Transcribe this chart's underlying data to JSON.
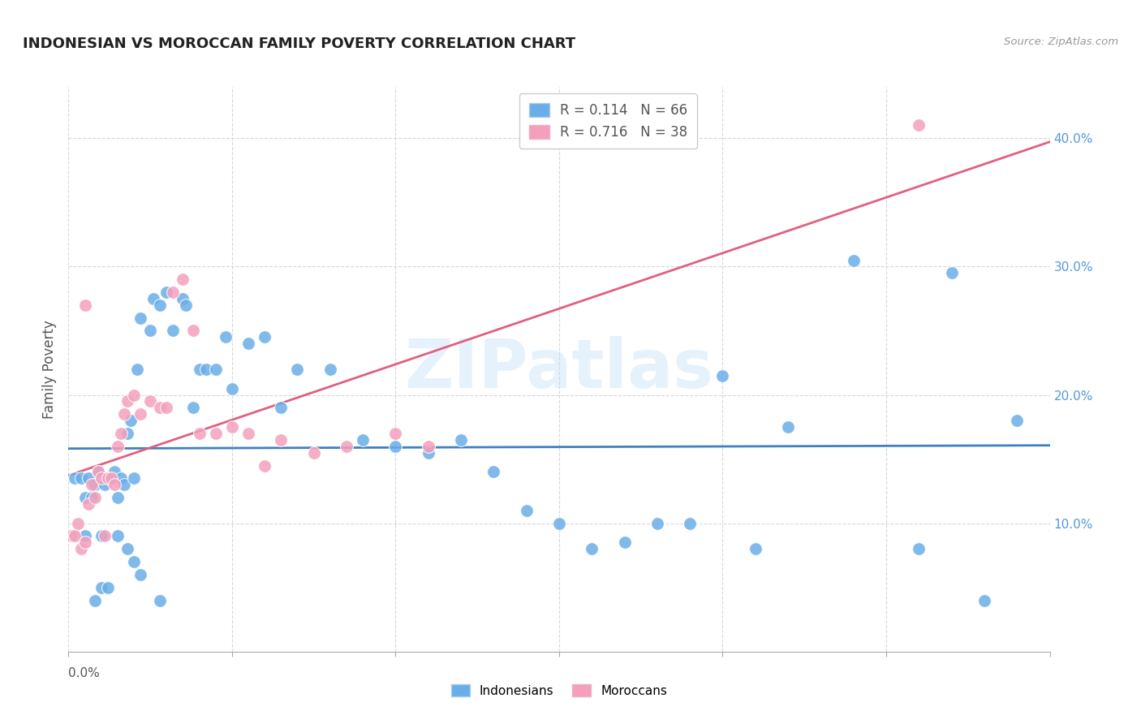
{
  "title": "INDONESIAN VS MOROCCAN FAMILY POVERTY CORRELATION CHART",
  "source": "Source: ZipAtlas.com",
  "ylabel": "Family Poverty",
  "ytick_labels": [
    "10.0%",
    "20.0%",
    "30.0%",
    "40.0%"
  ],
  "ytick_values": [
    0.1,
    0.2,
    0.3,
    0.4
  ],
  "xlim": [
    0.0,
    0.3
  ],
  "ylim": [
    0.0,
    0.44
  ],
  "legend_R_values": [
    "0.114",
    "0.716"
  ],
  "legend_N_values": [
    "66",
    "38"
  ],
  "watermark": "ZIPatlas",
  "blue_color": "#6aaee8",
  "pink_color": "#f4a0bc",
  "blue_line_color": "#4080c0",
  "pink_line_color": "#e06080",
  "indonesians_x": [
    0.002,
    0.004,
    0.005,
    0.006,
    0.007,
    0.008,
    0.009,
    0.01,
    0.011,
    0.012,
    0.013,
    0.014,
    0.015,
    0.016,
    0.017,
    0.018,
    0.019,
    0.02,
    0.021,
    0.022,
    0.025,
    0.026,
    0.028,
    0.03,
    0.032,
    0.035,
    0.036,
    0.038,
    0.04,
    0.042,
    0.045,
    0.048,
    0.05,
    0.055,
    0.06,
    0.065,
    0.07,
    0.08,
    0.09,
    0.1,
    0.11,
    0.12,
    0.13,
    0.14,
    0.15,
    0.16,
    0.17,
    0.18,
    0.19,
    0.2,
    0.21,
    0.22,
    0.24,
    0.26,
    0.27,
    0.28,
    0.005,
    0.008,
    0.01,
    0.012,
    0.015,
    0.018,
    0.02,
    0.022,
    0.028,
    0.29
  ],
  "indonesians_y": [
    0.135,
    0.135,
    0.12,
    0.135,
    0.12,
    0.13,
    0.14,
    0.09,
    0.13,
    0.135,
    0.135,
    0.14,
    0.12,
    0.135,
    0.13,
    0.17,
    0.18,
    0.135,
    0.22,
    0.26,
    0.25,
    0.275,
    0.27,
    0.28,
    0.25,
    0.275,
    0.27,
    0.19,
    0.22,
    0.22,
    0.22,
    0.245,
    0.205,
    0.24,
    0.245,
    0.19,
    0.22,
    0.22,
    0.165,
    0.16,
    0.155,
    0.165,
    0.14,
    0.11,
    0.1,
    0.08,
    0.085,
    0.1,
    0.1,
    0.215,
    0.08,
    0.175,
    0.305,
    0.08,
    0.295,
    0.04,
    0.09,
    0.04,
    0.05,
    0.05,
    0.09,
    0.08,
    0.07,
    0.06,
    0.04,
    0.18
  ],
  "moroccans_x": [
    0.001,
    0.002,
    0.003,
    0.004,
    0.005,
    0.006,
    0.007,
    0.008,
    0.009,
    0.01,
    0.011,
    0.012,
    0.013,
    0.014,
    0.015,
    0.016,
    0.017,
    0.018,
    0.02,
    0.022,
    0.025,
    0.028,
    0.03,
    0.032,
    0.035,
    0.038,
    0.04,
    0.045,
    0.05,
    0.055,
    0.06,
    0.065,
    0.075,
    0.085,
    0.1,
    0.11,
    0.26,
    0.005
  ],
  "moroccans_y": [
    0.09,
    0.09,
    0.1,
    0.08,
    0.085,
    0.115,
    0.13,
    0.12,
    0.14,
    0.135,
    0.09,
    0.135,
    0.135,
    0.13,
    0.16,
    0.17,
    0.185,
    0.195,
    0.2,
    0.185,
    0.195,
    0.19,
    0.19,
    0.28,
    0.29,
    0.25,
    0.17,
    0.17,
    0.175,
    0.17,
    0.145,
    0.165,
    0.155,
    0.16,
    0.17,
    0.16,
    0.41,
    0.27
  ]
}
